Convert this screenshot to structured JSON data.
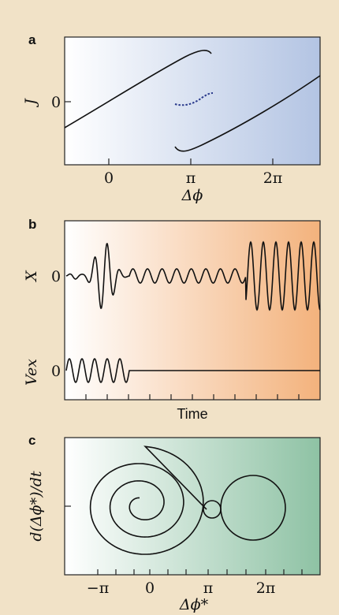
{
  "colors": {
    "background": "#f1e2c7",
    "panel_a_gradient": [
      "#ffffff",
      "#b3c4e3"
    ],
    "panel_b_gradient": [
      "#ffffff",
      "#f3b27c"
    ],
    "panel_c_gradient": [
      "#ffffff",
      "#8ec2a4"
    ],
    "dotted_curve": "#2a3a8c"
  },
  "panels": [
    {
      "letter": "a",
      "ylabel": "J",
      "ytick": "0",
      "xtick_labels": [
        "0",
        "π",
        "2π"
      ],
      "xlabel": "Δϕ"
    },
    {
      "letter": "b",
      "ylabel_top": "X",
      "ytick_top": "0",
      "ylabel_bottom": "Vex",
      "ytick_bottom": "0",
      "xlabel": "Time"
    },
    {
      "letter": "c",
      "ylabel": "d(Δϕ*)/dt",
      "xtick_labels": [
        "−π",
        "0",
        "π",
        "2π"
      ],
      "xlabel": "Δϕ*"
    }
  ]
}
